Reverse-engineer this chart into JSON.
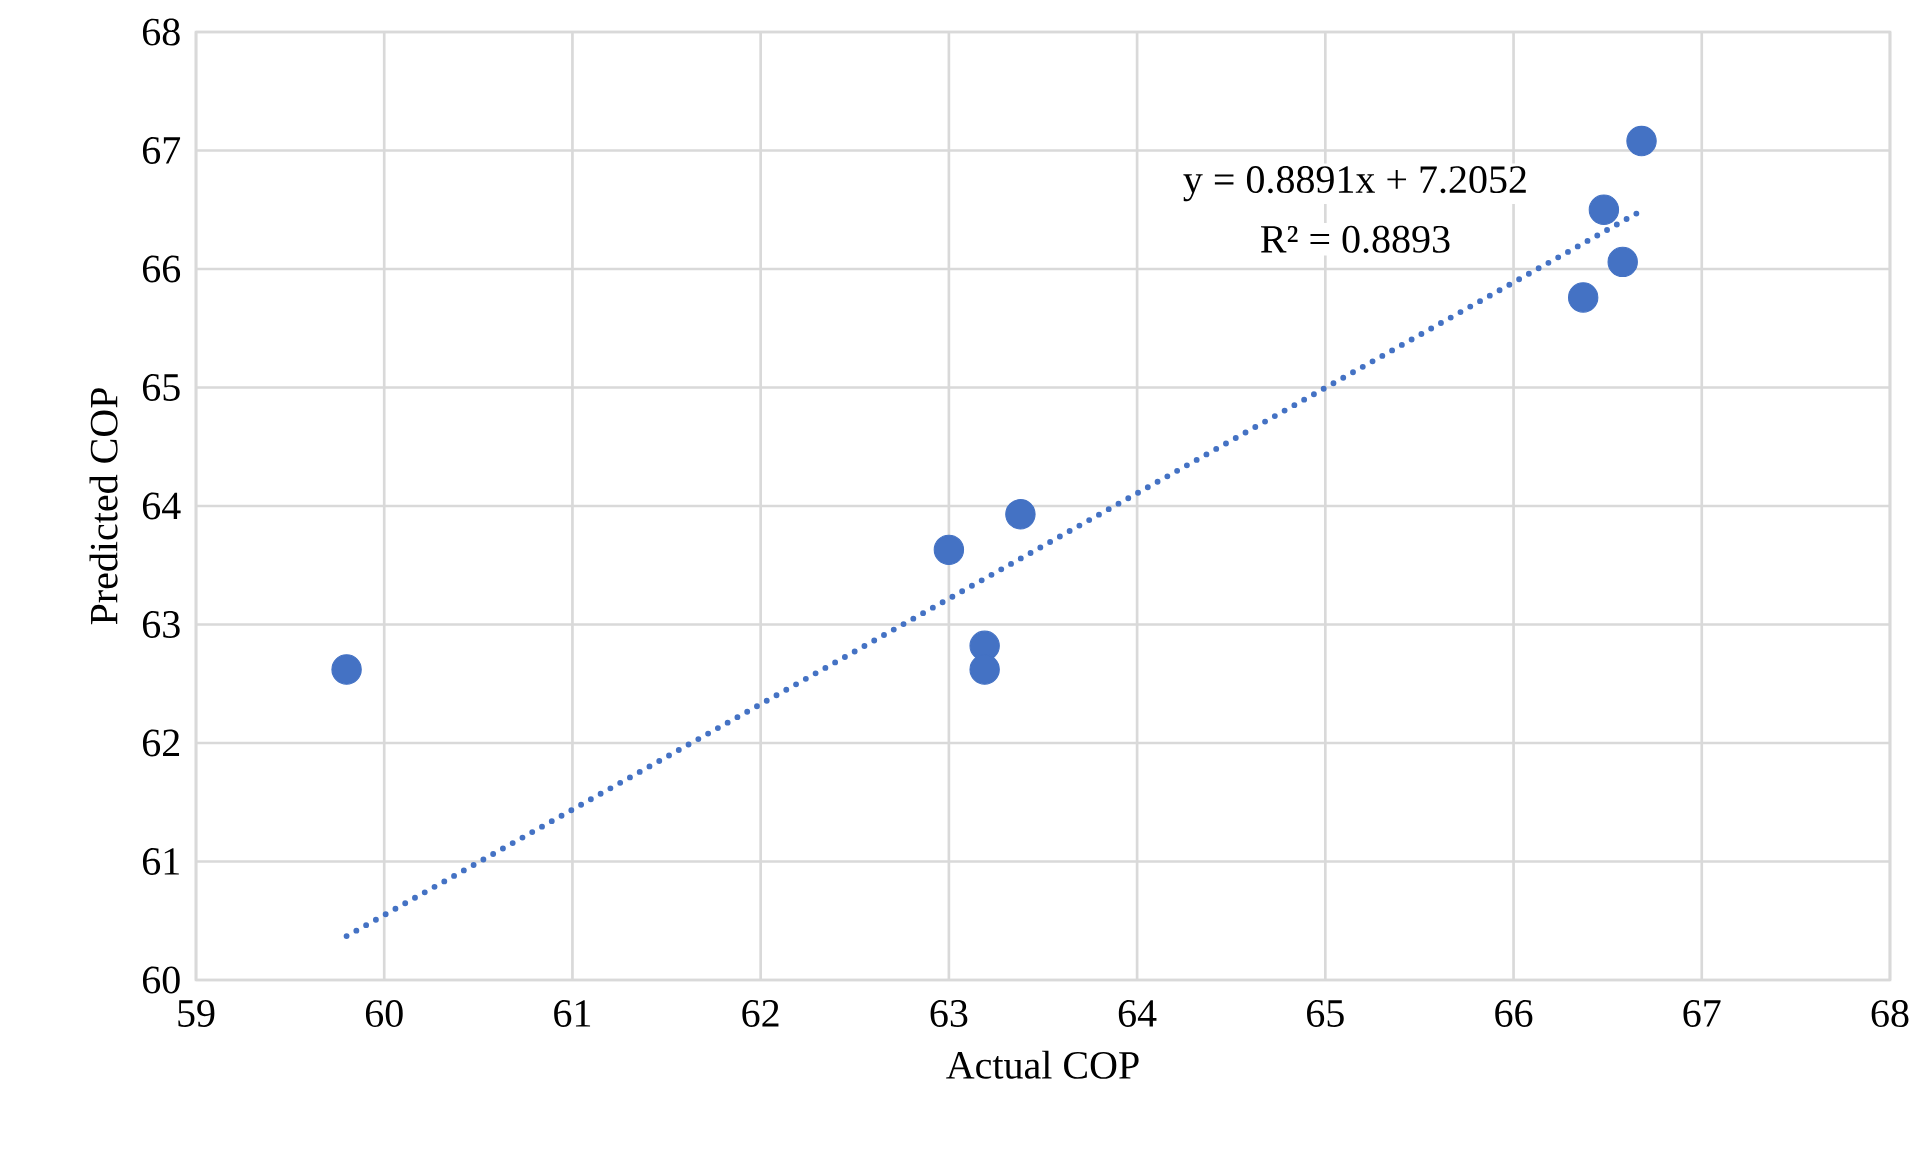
{
  "chart_data": {
    "type": "scatter",
    "xlabel": "Actual COP",
    "ylabel": "Predicted COP",
    "series": [
      {
        "color": "#4472c4",
        "marker": "circle",
        "x": [
          59.8,
          63.0,
          63.38,
          63.19,
          63.19,
          66.37,
          66.48,
          66.58,
          66.68
        ],
        "values": [
          62.62,
          63.63,
          63.93,
          62.82,
          62.62,
          65.76,
          66.5,
          66.06,
          67.08
        ]
      },
      {
        "type": "line",
        "color": "#4472c4",
        "line_style": "dotted",
        "marker": "none",
        "x": [
          59.8,
          66.7
        ],
        "values": [
          60.37,
          66.51
        ]
      }
    ],
    "annotations": [
      "y = 0.8891x + 7.2052",
      "R² = 0.8893"
    ],
    "xlim": [
      59,
      68
    ],
    "xticks": [
      59,
      60,
      61,
      62,
      63,
      64,
      65,
      66,
      67,
      68
    ],
    "ylim": [
      60,
      68
    ],
    "yticks": [
      60,
      61,
      62,
      63,
      64,
      65,
      66,
      67,
      68
    ],
    "grid": true
  }
}
